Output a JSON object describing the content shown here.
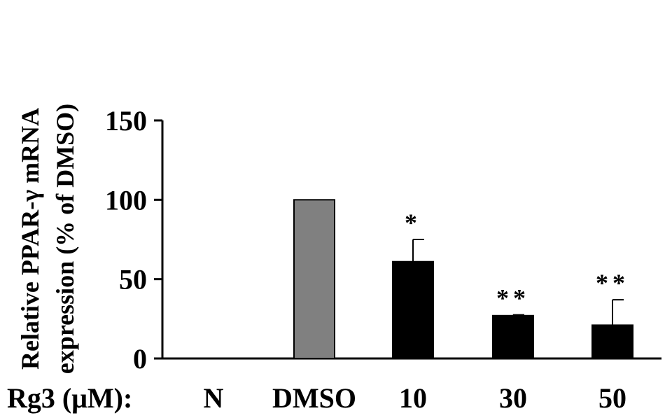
{
  "chart_data": {
    "type": "bar",
    "ylabel_line1": "Relative PPAR-γ mRNA",
    "ylabel_line2": "expression (% of DMSO)",
    "x_prefix": "Rg3 (μM):",
    "categories": [
      "N",
      "DMSO",
      "10",
      "30",
      "50"
    ],
    "values": [
      null,
      100,
      61,
      27,
      21
    ],
    "errors": [
      null,
      null,
      14,
      0.5,
      16
    ],
    "significance": [
      "",
      "",
      "*",
      "**",
      "**"
    ],
    "bar_colors": [
      "#000000",
      "#808080",
      "#000000",
      "#000000",
      "#000000"
    ],
    "ylim": [
      0,
      150
    ],
    "yticks": [
      0,
      50,
      100,
      150
    ],
    "grid": false,
    "legend": "none"
  }
}
